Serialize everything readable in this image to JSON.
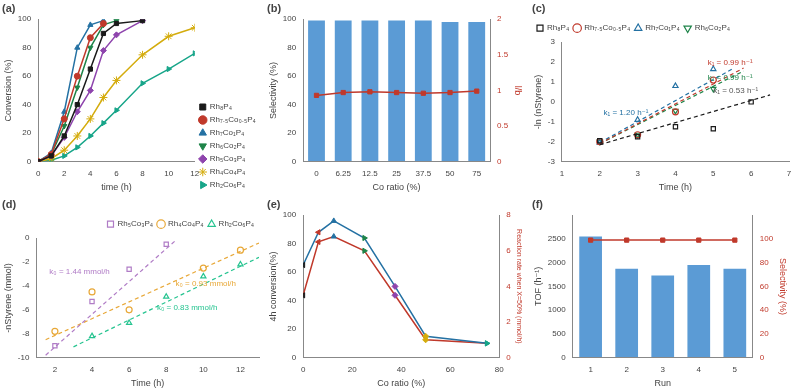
{
  "chart_data": [
    {
      "type": "line",
      "title": "(a)",
      "xlabel": "time (h)",
      "ylabel": "Conversion (%)",
      "xlim": [
        0,
        12
      ],
      "xticks": [
        0,
        2,
        4,
        6,
        8,
        10,
        12
      ],
      "ylim": [
        0,
        100
      ],
      "yticks": [
        0,
        20,
        40,
        60,
        80,
        100
      ],
      "grid": false,
      "legend": "lower right",
      "series": [
        {
          "name": "Rh₈P₄",
          "color": "#1a1a1a",
          "marker": "square",
          "x": [
            0,
            1,
            2,
            3,
            4,
            5,
            6,
            8
          ],
          "values": [
            0,
            4,
            18,
            40,
            65,
            90,
            97,
            99
          ]
        },
        {
          "name": "Rh₇.₅Co₀.₅P₄",
          "color": "#c0392b",
          "marker": "circle",
          "x": [
            0,
            1,
            2,
            3,
            4,
            5
          ],
          "values": [
            0,
            5,
            30,
            60,
            87,
            97
          ]
        },
        {
          "name": "Rh₇Co₁P₄",
          "color": "#2471a3",
          "marker": "triangle-up",
          "x": [
            0,
            1,
            2,
            3,
            4,
            5
          ],
          "values": [
            0,
            6,
            35,
            80,
            96,
            99
          ]
        },
        {
          "name": "Rh₆Co₂P₄",
          "color": "#1e8449",
          "marker": "triangle-down",
          "x": [
            0,
            1,
            2,
            3,
            4,
            5,
            6
          ],
          "values": [
            0,
            5,
            25,
            52,
            80,
            96,
            99
          ]
        },
        {
          "name": "Rh₅Co₃P₄",
          "color": "#8e44ad",
          "marker": "diamond",
          "x": [
            0,
            1,
            2,
            3,
            4,
            5,
            6,
            8
          ],
          "values": [
            0,
            4,
            17,
            35,
            50,
            78,
            89,
            99
          ]
        },
        {
          "name": "Rh₄Co₄P₄",
          "color": "#d4ac0d",
          "marker": "star",
          "x": [
            0,
            1,
            2,
            3,
            4,
            5,
            6,
            8,
            10,
            12
          ],
          "values": [
            0,
            2,
            8,
            18,
            30,
            45,
            57,
            75,
            88,
            94
          ]
        },
        {
          "name": "Rh₂Co₆P₄",
          "color": "#17a589",
          "marker": "triangle-right",
          "x": [
            0,
            1,
            2,
            3,
            4,
            5,
            6,
            8,
            10,
            12
          ],
          "values": [
            0,
            1,
            4,
            10,
            18,
            27,
            36,
            55,
            65,
            76
          ]
        }
      ]
    },
    {
      "type": "bar",
      "title": "(b)",
      "xlabel": "Co ratio (%)",
      "ylabel": "Selectivity (%)",
      "y2label": "l/b",
      "categories": [
        "0",
        "6.25",
        "12.5",
        "25",
        "37.5",
        "50",
        "75"
      ],
      "ylim": [
        0,
        100
      ],
      "yticks": [
        0,
        20,
        40,
        60,
        80,
        100
      ],
      "y2lim": [
        0,
        2
      ],
      "y2ticks": [
        0,
        0.5,
        1,
        1.5,
        2
      ],
      "grid": false,
      "series": [
        {
          "type": "bar",
          "color": "#5b9bd5",
          "values": [
            99,
            99,
            99,
            99,
            99,
            98,
            98
          ]
        },
        {
          "type": "line",
          "color": "#c0392b",
          "marker": "square",
          "axis": "y2",
          "values": [
            0.93,
            0.97,
            0.98,
            0.97,
            0.96,
            0.97,
            0.99
          ]
        }
      ]
    },
    {
      "type": "scatter",
      "title": "(c)",
      "xlabel": "Time (h)",
      "ylabel": "-ln (nStyrene)",
      "xlim": [
        1,
        7
      ],
      "xticks": [
        1,
        2,
        3,
        4,
        5,
        6,
        7
      ],
      "ylim": [
        -3,
        3
      ],
      "yticks": [
        -3,
        -2,
        -1,
        0,
        1,
        2,
        3
      ],
      "grid": false,
      "legend": "upper left",
      "series": [
        {
          "name": "Rh₈P₄",
          "color": "#1a1a1a",
          "marker": "square",
          "x": [
            2,
            3,
            4,
            5,
            6
          ],
          "values": [
            -1.95,
            -1.75,
            -1.25,
            -1.35,
            0.0
          ],
          "fit_x": [
            2,
            6.5
          ],
          "fit_y": [
            -2.15,
            0.35
          ]
        },
        {
          "name": "Rh₇.₅Co₀.₅P₄",
          "color": "#c0392b",
          "marker": "circle",
          "x": [
            2,
            3,
            4,
            5
          ],
          "values": [
            -2.0,
            -1.65,
            -0.5,
            1.1
          ],
          "fit_x": [
            2,
            5.8
          ],
          "fit_y": [
            -2.1,
            1.7
          ]
        },
        {
          "name": "Rh₇Co₁P₄",
          "color": "#2471a3",
          "marker": "triangle-up",
          "x": [
            2,
            3,
            4,
            5
          ],
          "values": [
            -2.05,
            -0.9,
            0.8,
            1.65
          ],
          "fit_x": [
            2,
            5.5
          ],
          "fit_y": [
            -2.05,
            1.65
          ]
        },
        {
          "name": "Rh₆Co₂P₄",
          "color": "#1e8449",
          "marker": "triangle-down",
          "x": [
            2,
            3,
            4,
            5
          ],
          "values": [
            -2.0,
            -1.65,
            -0.45,
            0.65
          ],
          "fit_x": [
            2,
            5.8
          ],
          "fit_y": [
            -2.1,
            1.55
          ]
        }
      ],
      "annotations": [
        {
          "text": "k₁ = 0.53 h⁻¹",
          "x": 5.0,
          "y": 0.45,
          "color": "#555555"
        },
        {
          "text": "k₁ = 0.99 h⁻¹",
          "x": 4.85,
          "y": 1.85,
          "color": "#c0392b"
        },
        {
          "text": "k₁ = 1.20 h⁻¹",
          "x": 2.1,
          "y": -0.65,
          "color": "#2471a3"
        },
        {
          "text": "k₁ = 0.99 h⁻¹",
          "x": 4.85,
          "y": 1.1,
          "color": "#1e8449"
        }
      ]
    },
    {
      "type": "scatter",
      "title": "(d)",
      "xlabel": "Time (h)",
      "ylabel": "-nStyrene (mmol)",
      "xlim": [
        1,
        13
      ],
      "xticks": [
        2,
        4,
        6,
        8,
        10,
        12
      ],
      "ylim": [
        -10,
        0
      ],
      "yticks": [
        0,
        -2,
        -4,
        -6,
        -8,
        -10
      ],
      "grid": false,
      "legend": "upper right",
      "series": [
        {
          "name": "Rh₅Co₃P₄",
          "color": "#b07cc6",
          "marker": "square",
          "x": [
            2,
            4,
            6,
            8
          ],
          "values": [
            -9.0,
            -5.3,
            -2.6,
            -0.5
          ],
          "fit_x": [
            1.5,
            8.5
          ],
          "fit_y": [
            -9.8,
            -0.2
          ]
        },
        {
          "name": "Rh₄Co₄P₄",
          "color": "#e8a838",
          "marker": "circle",
          "x": [
            2,
            4,
            6,
            10,
            12
          ],
          "values": [
            -7.8,
            -4.5,
            -6.0,
            -2.5,
            -1.0
          ],
          "fit_x": [
            1.5,
            13
          ],
          "fit_y": [
            -8.5,
            -0.4
          ]
        },
        {
          "name": "Rh₂Co₆P₄",
          "color": "#26c490",
          "marker": "triangle-up",
          "x": [
            4,
            6,
            8,
            10,
            12
          ],
          "values": [
            -8.2,
            -7.1,
            -4.9,
            -3.2,
            -2.2
          ],
          "fit_x": [
            3,
            13
          ],
          "fit_y": [
            -9.1,
            -1.6
          ]
        }
      ],
      "annotations": [
        {
          "text": "k₀ = 1.44 mmol/h",
          "x": 1.7,
          "y": -3.0,
          "color": "#b07cc6"
        },
        {
          "text": "k₀ = 0.93 mmol/h",
          "x": 8.5,
          "y": -4.0,
          "color": "#e8a838"
        },
        {
          "text": "k₀ = 0.83 mmol/h",
          "x": 7.5,
          "y": -6.0,
          "color": "#26c490"
        }
      ]
    },
    {
      "type": "line",
      "title": "(e)",
      "xlabel": "Co ratio (%)",
      "ylabel": "4h conversion(%)",
      "y2label": "Reaction rate when X=50% (mmol/h)",
      "xlim": [
        0,
        80
      ],
      "xticks": [
        0,
        20,
        40,
        60,
        80
      ],
      "ylim": [
        0,
        100
      ],
      "yticks": [
        0,
        20,
        40,
        60,
        80,
        100
      ],
      "y2lim": [
        0,
        8
      ],
      "y2ticks": [
        0,
        2,
        4,
        6,
        8
      ],
      "grid": false,
      "series": [
        {
          "color": "#2471a3",
          "x": [
            0,
            6.25,
            12.5,
            25,
            37.5,
            50,
            75
          ],
          "values": [
            65,
            88,
            96,
            84,
            50,
            15,
            10
          ],
          "colors": [
            "#1a1a1a",
            "#c0392b",
            "#2471a3",
            "#1e8449",
            "#8e44ad",
            "#d4ac0d",
            "#17a589"
          ],
          "marker": [
            "triangle-left",
            "triangle-left",
            "triangle-up",
            "triangle-right",
            "diamond",
            "diamond",
            "triangle-right"
          ]
        },
        {
          "color": "#c0392b",
          "axis": "y2",
          "x": [
            0,
            6.25,
            12.5,
            25,
            37.5,
            50,
            75
          ],
          "values": [
            3.5,
            6.5,
            6.8,
            6.0,
            3.5,
            1.0,
            0.8
          ],
          "colors": [
            "#1a1a1a",
            "#c0392b",
            "#2471a3",
            "#1e8449",
            "#8e44ad",
            "#d4ac0d",
            "#17a589"
          ],
          "marker": [
            "triangle-left",
            "triangle-left",
            "triangle-up",
            "triangle-right",
            "diamond",
            "diamond",
            "triangle-right"
          ]
        }
      ]
    },
    {
      "type": "bar",
      "title": "(f)",
      "xlabel": "Run",
      "ylabel": "TOF (h⁻¹)",
      "y2label": "Selectivity (%)",
      "categories": [
        "1",
        "2",
        "3",
        "4",
        "5"
      ],
      "ylim": [
        0,
        3000
      ],
      "yticks": [
        0,
        500,
        1000,
        1500,
        2000,
        2500
      ],
      "y2lim": [
        0,
        120
      ],
      "y2ticks": [
        0,
        20,
        40,
        60,
        80,
        100
      ],
      "grid": false,
      "series": [
        {
          "type": "bar",
          "color": "#5b9bd5",
          "values": [
            2550,
            1870,
            1730,
            1950,
            1870
          ]
        },
        {
          "type": "line",
          "color": "#c0392b",
          "marker": "square",
          "axis": "y2",
          "values": [
            99,
            99,
            99,
            99,
            99
          ]
        }
      ]
    }
  ]
}
